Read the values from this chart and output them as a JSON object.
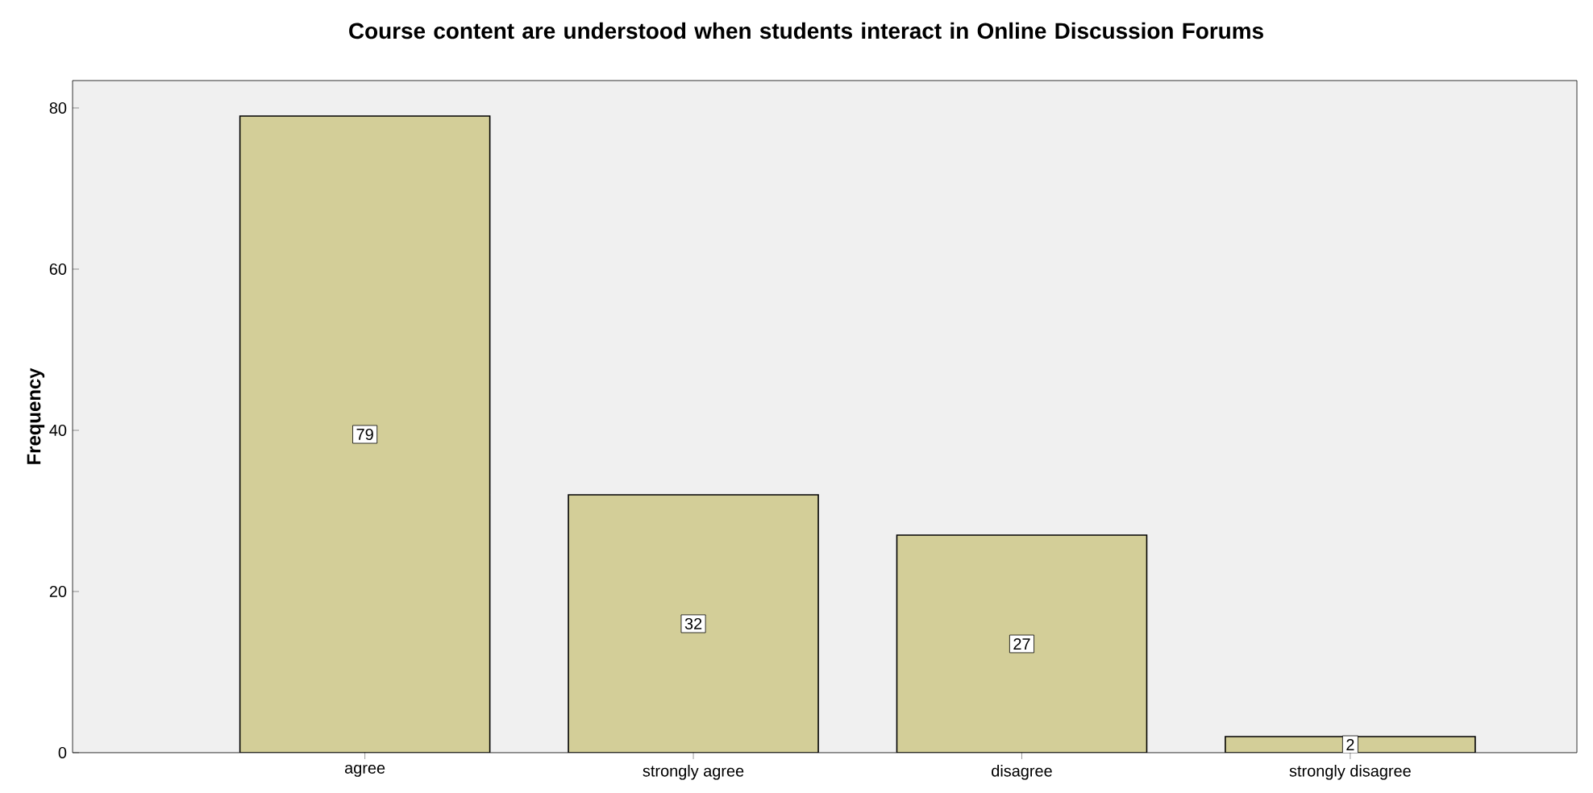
{
  "chart_data": {
    "type": "bar",
    "title": "Course content are understood when students interact in Online Discussion Forums",
    "ylabel": "Frequency",
    "categories": [
      "agree",
      "strongly agree",
      "disagree",
      "strongly disagree"
    ],
    "values": [
      79,
      32,
      27,
      2
    ],
    "color": "#d3ce98",
    "ylim": [
      0,
      83.4
    ],
    "yticks": [
      0,
      20,
      40,
      60,
      80
    ],
    "data_labels": true
  }
}
